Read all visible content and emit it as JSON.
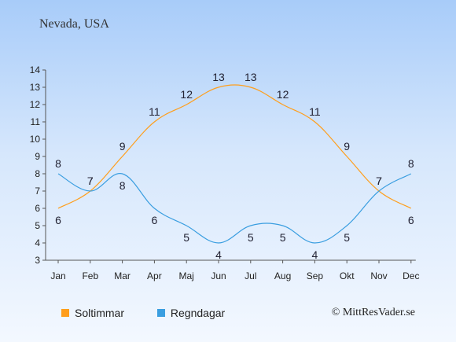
{
  "title": "Nevada, USA",
  "credit": "© MittResVader.se",
  "chart_data": {
    "type": "line",
    "categories": [
      "Jan",
      "Feb",
      "Mar",
      "Apr",
      "Maj",
      "Jun",
      "Jul",
      "Aug",
      "Sep",
      "Okt",
      "Nov",
      "Dec"
    ],
    "ylim": [
      3,
      14
    ],
    "yticks": [
      3,
      4,
      5,
      6,
      7,
      8,
      9,
      10,
      11,
      12,
      13,
      14
    ],
    "grid": false,
    "legend_position": "bottom-left",
    "series": [
      {
        "name": "Soltimmar",
        "color": "#ff9e1b",
        "values": [
          6,
          7,
          9,
          11,
          12,
          13,
          13,
          12,
          11,
          9,
          7,
          6
        ]
      },
      {
        "name": "Regndagar",
        "color": "#3a9ee0",
        "values": [
          8,
          7,
          8,
          6,
          5,
          4,
          5,
          5,
          4,
          5,
          7,
          8
        ]
      }
    ]
  }
}
